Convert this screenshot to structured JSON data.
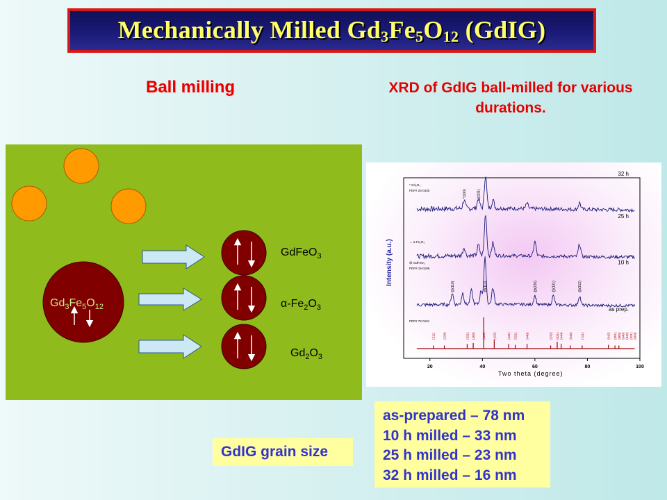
{
  "title": {
    "pre": "Mechanically Milled Gd",
    "sub1": "3",
    "mid1": "Fe",
    "sub2": "5",
    "mid2": "O",
    "sub3": "12",
    "post": " (GdIG)"
  },
  "ball_milling_label": "Ball milling",
  "xrd_caption": {
    "line1": "XRD of  GdIG ball-milled for various",
    "line2": "durations."
  },
  "diagram": {
    "big_particle": {
      "a": "Gd",
      "s1": "3",
      "b": "Fe",
      "s2": "5",
      "c": "O",
      "s3": "12"
    },
    "products": [
      {
        "a": "GdFeO",
        "s1": "3",
        "b": ""
      },
      {
        "a": "α-Fe",
        "s1": "2",
        "b": "O",
        "s2": "3"
      },
      {
        "a": "Gd",
        "s1": "2",
        "b": "O",
        "s2": "3"
      }
    ],
    "colors": {
      "panel": "#8fbc1c",
      "balls": "#ff9a00",
      "particle": "#800000",
      "arrows": "#cce8f4"
    }
  },
  "chart_data": {
    "type": "line",
    "xlabel": "Two theta (degree)",
    "ylabel": "Intensity (a.u.)",
    "xlim": [
      10,
      100
    ],
    "x_ticks": [
      "20",
      "40",
      "60",
      "80",
      "100"
    ],
    "series": [
      {
        "name": "32 h",
        "peaks": [
          [
            33.0,
            0.25
          ],
          [
            38.5,
            0.3
          ],
          [
            41.2,
            1.0
          ],
          [
            44.0,
            0.25
          ],
          [
            57.0,
            0.15
          ],
          [
            77.0,
            0.2
          ]
        ]
      },
      {
        "name": "25 h",
        "peaks": [
          [
            33.0,
            0.2
          ],
          [
            38.5,
            0.25
          ],
          [
            41.2,
            1.0
          ],
          [
            44.0,
            0.3
          ],
          [
            60.0,
            0.35
          ],
          [
            77.0,
            0.3
          ]
        ]
      },
      {
        "name": "10 h",
        "peaks": [
          [
            28.5,
            0.25
          ],
          [
            32.5,
            0.25
          ],
          [
            35.8,
            0.3
          ],
          [
            39.5,
            0.3
          ],
          [
            41.0,
            1.0
          ],
          [
            44.0,
            0.35
          ],
          [
            60.0,
            0.2
          ],
          [
            67.0,
            0.2
          ],
          [
            77.0,
            0.2
          ]
        ]
      },
      {
        "name": "as prep.",
        "peaks": [
          [
            21.3,
            0.1
          ],
          [
            25.5,
            0.1
          ],
          [
            34.2,
            0.15
          ],
          [
            36.5,
            0.18
          ],
          [
            40.5,
            1.0
          ],
          [
            44.5,
            0.28
          ],
          [
            50.0,
            0.15
          ],
          [
            52.5,
            0.12
          ],
          [
            57.0,
            0.15
          ],
          [
            66.0,
            0.1
          ],
          [
            68.5,
            0.22
          ],
          [
            70.0,
            0.15
          ],
          [
            73.5,
            0.1
          ],
          [
            78.0,
            0.1
          ],
          [
            88.0,
            0.12
          ],
          [
            90.5,
            0.1
          ],
          [
            92.0,
            0.1
          ]
        ]
      }
    ],
    "legend_notes": [
      {
        "lines": [
          "* Gd₂O₃",
          "PDF# 24-0430"
        ]
      },
      {
        "lines": [
          "→ α-Fe₂O₃"
        ]
      },
      {
        "lines": [
          "@ GdFeO₃",
          "PDF# 15-0196"
        ]
      },
      {
        "lines": [
          "PDF# 72-0161"
        ]
      }
    ],
    "peak_labels_asprep": [
      "(211)",
      "(220)",
      "(321)",
      "(400)",
      "(420)",
      "(422)",
      "(431)",
      "(521)",
      "(440)",
      "(532)",
      "(631)",
      "(444)",
      "(640)",
      "(721)",
      "(642)",
      "(651)",
      "(800)",
      "(840)",
      "(842)",
      "(921)",
      "(664)"
    ],
    "peak_labels_10h": [
      "@(110)",
      "@(112)",
      "@(220)",
      "@(131)",
      "@(312)"
    ],
    "peak_labels_32h": [
      "*(100)",
      "*(101)"
    ],
    "colors": {
      "line": "#1a1a78",
      "asprep": "#a00000",
      "labels": "#b00000"
    }
  },
  "grain": {
    "label": "GdIG grain size",
    "items": [
      "as-prepared – 78 nm",
      "10 h milled – 33 nm",
      "25 h milled – 23 nm",
      "32 h milled – 16 nm"
    ]
  }
}
